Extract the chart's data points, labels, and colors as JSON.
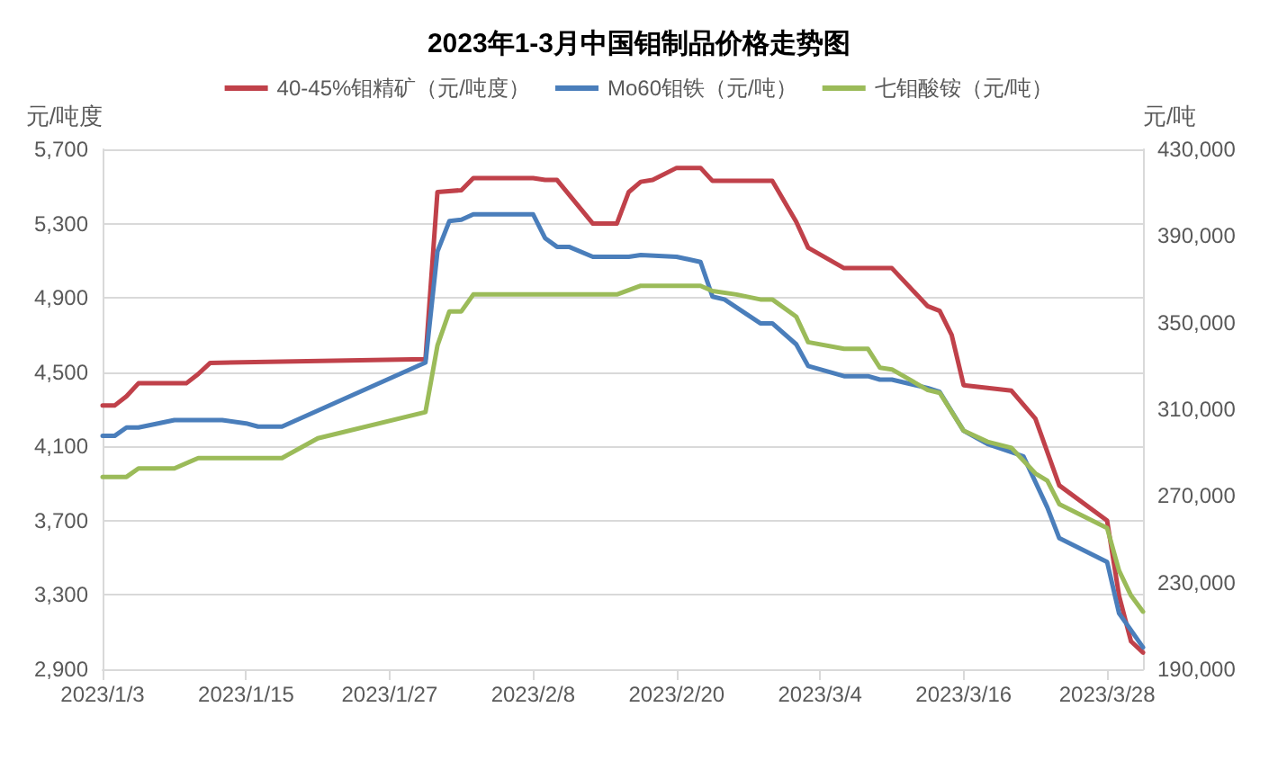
{
  "chart_data": {
    "type": "line",
    "title": "2023年1-3月中国钼制品价格走势图",
    "ylabel": "元/吨度",
    "y2label": "元/吨",
    "legend": "top",
    "grid": "y",
    "marker": "none",
    "line_style": "solid",
    "xlim": [
      "2023-01-03",
      "2023-03-31"
    ],
    "xticks": [
      {
        "value": "2023-01-03",
        "label": "2023/1/3"
      },
      {
        "value": "2023-01-15",
        "label": "2023/1/15"
      },
      {
        "value": "2023-01-27",
        "label": "2023/1/27"
      },
      {
        "value": "2023-02-08",
        "label": "2023/2/8"
      },
      {
        "value": "2023-02-20",
        "label": "2023/2/20"
      },
      {
        "value": "2023-03-04",
        "label": "2023/3/4"
      },
      {
        "value": "2023-03-16",
        "label": "2023/3/16"
      },
      {
        "value": "2023-03-28",
        "label": "2023/3/28"
      }
    ],
    "ylim": [
      2900,
      5700
    ],
    "yticks": [
      {
        "value": 2900,
        "label": "2,900"
      },
      {
        "value": 3300,
        "label": "3,300"
      },
      {
        "value": 3700,
        "label": "3,700"
      },
      {
        "value": 4100,
        "label": "4,100"
      },
      {
        "value": 4500,
        "label": "4,500"
      },
      {
        "value": 4900,
        "label": "4,900"
      },
      {
        "value": 5300,
        "label": "5,300"
      },
      {
        "value": 5700,
        "label": "5,700"
      }
    ],
    "y2lim": [
      190000,
      430000
    ],
    "y2ticks": [
      {
        "value": 190000,
        "label": "190,000"
      },
      {
        "value": 230000,
        "label": "230,000"
      },
      {
        "value": 270000,
        "label": "270,000"
      },
      {
        "value": 310000,
        "label": "310,000"
      },
      {
        "value": 350000,
        "label": "350,000"
      },
      {
        "value": 390000,
        "label": "390,000"
      },
      {
        "value": 430000,
        "label": "430,000"
      }
    ],
    "series": [
      {
        "name": "40-45%钼精矿（元/吨度）",
        "color": "#c0414a",
        "x": [
          "2023-01-03",
          "2023-01-04",
          "2023-01-05",
          "2023-01-06",
          "2023-01-10",
          "2023-01-11",
          "2023-01-12",
          "2023-01-30",
          "2023-01-31",
          "2023-02-02",
          "2023-02-03",
          "2023-02-08",
          "2023-02-09",
          "2023-02-10",
          "2023-02-13",
          "2023-02-15",
          "2023-02-16",
          "2023-02-17",
          "2023-02-18",
          "2023-02-20",
          "2023-02-22",
          "2023-02-23",
          "2023-02-28",
          "2023-03-02",
          "2023-03-03",
          "2023-03-06",
          "2023-03-10",
          "2023-03-13",
          "2023-03-14",
          "2023-03-15",
          "2023-03-16",
          "2023-03-20",
          "2023-03-22",
          "2023-03-24",
          "2023-03-28",
          "2023-03-29",
          "2023-03-30",
          "2023-03-31"
        ],
        "values": [
          4320,
          4320,
          4370,
          4440,
          4440,
          4490,
          4550,
          4570,
          5470,
          5480,
          5545,
          5545,
          5535,
          5535,
          5300,
          5300,
          5470,
          5525,
          5535,
          5600,
          5600,
          5530,
          5530,
          5310,
          5170,
          5060,
          5060,
          4855,
          4830,
          4700,
          4430,
          4400,
          4250,
          3890,
          3700,
          3295,
          3050,
          2990
        ]
      },
      {
        "name": "Mo60钼铁（元/吨）",
        "color": "#4a7ebb",
        "axis": "y2",
        "x": [
          "2023-01-03",
          "2023-01-04",
          "2023-01-05",
          "2023-01-06",
          "2023-01-09",
          "2023-01-13",
          "2023-01-15",
          "2023-01-16",
          "2023-01-18",
          "2023-01-30",
          "2023-01-31",
          "2023-02-01",
          "2023-02-02",
          "2023-02-03",
          "2023-02-08",
          "2023-02-09",
          "2023-02-10",
          "2023-02-11",
          "2023-02-13",
          "2023-02-16",
          "2023-02-17",
          "2023-02-20",
          "2023-02-22",
          "2023-02-23",
          "2023-02-24",
          "2023-02-27",
          "2023-02-28",
          "2023-03-02",
          "2023-03-03",
          "2023-03-06",
          "2023-03-08",
          "2023-03-09",
          "2023-03-10",
          "2023-03-13",
          "2023-03-14",
          "2023-03-16",
          "2023-03-18",
          "2023-03-21",
          "2023-03-23",
          "2023-03-24",
          "2023-03-28",
          "2023-03-29",
          "2023-03-30",
          "2023-03-31"
        ],
        "values": [
          297700,
          297700,
          301600,
          301600,
          305000,
          305000,
          303500,
          302000,
          302000,
          331600,
          382800,
          396900,
          397500,
          400000,
          400000,
          389000,
          385000,
          385000,
          380400,
          380400,
          381200,
          380400,
          378000,
          362000,
          360700,
          349700,
          349700,
          340000,
          330000,
          325300,
          325300,
          323700,
          323700,
          319800,
          318000,
          300100,
          294000,
          288300,
          264700,
          250500,
          239500,
          215800,
          208000,
          200100
        ]
      },
      {
        "name": "七钼酸铵（元/吨）",
        "color": "#9bbb59",
        "axis": "y2",
        "x": [
          "2023-01-03",
          "2023-01-05",
          "2023-01-06",
          "2023-01-09",
          "2023-01-11",
          "2023-01-18",
          "2023-01-21",
          "2023-01-30",
          "2023-01-31",
          "2023-02-01",
          "2023-02-02",
          "2023-02-03",
          "2023-02-15",
          "2023-02-17",
          "2023-02-22",
          "2023-02-23",
          "2023-02-25",
          "2023-02-27",
          "2023-02-28",
          "2023-03-02",
          "2023-03-03",
          "2023-03-06",
          "2023-03-08",
          "2023-03-09",
          "2023-03-10",
          "2023-03-13",
          "2023-03-14",
          "2023-03-16",
          "2023-03-18",
          "2023-03-20",
          "2023-03-22",
          "2023-03-23",
          "2023-03-24",
          "2023-03-28",
          "2023-03-29",
          "2023-03-30",
          "2023-03-31"
        ],
        "values": [
          278800,
          278800,
          282700,
          282700,
          287500,
          287500,
          296600,
          308700,
          339400,
          355200,
          355200,
          363000,
          363000,
          367000,
          367000,
          364600,
          363000,
          360700,
          360700,
          352800,
          341000,
          337900,
          337900,
          329200,
          328400,
          318900,
          317600,
          300100,
          295000,
          292200,
          280400,
          277000,
          266200,
          255200,
          235500,
          224000,
          216600
        ]
      }
    ]
  }
}
